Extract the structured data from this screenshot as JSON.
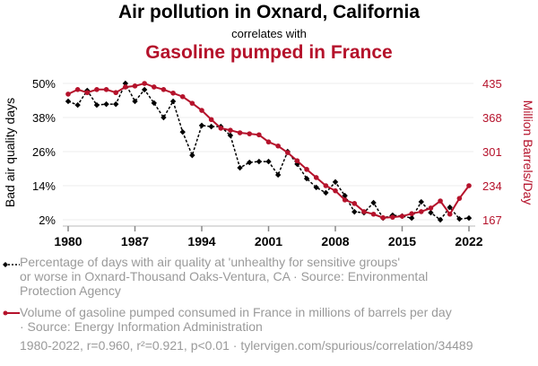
{
  "header": {
    "title": "Air pollution in Oxnard, California",
    "subtitle": "correlates with",
    "title2": "Gasoline pumped in France"
  },
  "colors": {
    "series1": "#000000",
    "series2": "#b5122b",
    "grid": "#eeeeee",
    "legend_text": "#9a9a9a"
  },
  "legend": {
    "item1": "Percentage of days with air quality at 'unhealthy for sensitive groups' or worse in Oxnard-Thousand Oaks-Ventura, CA · Source: Environmental Protection Agency",
    "item1_lines": [
      "Percentage of days with air quality at 'unhealthy for sensitive groups'",
      "or worse in Oxnard-Thousand Oaks-Ventura, CA · Source: Environmental",
      "Protection Agency"
    ],
    "item2_lines": [
      "Volume of gasoline pumped consumed in France in millions of barrels per day",
      "· Source: Energy Information Administration"
    ]
  },
  "footer": "1980-2022, r=0.960, r²=0.921, p<0.01 · tylervigen.com/spurious/correlation/34489",
  "chart_data": {
    "type": "line",
    "title": "Air pollution in Oxnard, California correlates with Gasoline pumped in France",
    "x": [
      1980,
      1981,
      1982,
      1983,
      1984,
      1985,
      1986,
      1987,
      1988,
      1989,
      1990,
      1991,
      1992,
      1993,
      1994,
      1995,
      1996,
      1997,
      1998,
      1999,
      2000,
      2001,
      2002,
      2003,
      2004,
      2005,
      2006,
      2007,
      2008,
      2009,
      2010,
      2011,
      2012,
      2013,
      2014,
      2015,
      2016,
      2017,
      2018,
      2019,
      2020,
      2021,
      2022
    ],
    "xticks": [
      1980,
      1987,
      1994,
      2001,
      2008,
      2015,
      2022
    ],
    "xlim": [
      1980,
      2022
    ],
    "ylabel": "Bad air quality days",
    "ylabel_right": "Million Barrels/Day",
    "yticks_left": [
      "2%",
      "14%",
      "26%",
      "38%",
      "50%"
    ],
    "yticks_left_values": [
      2,
      14,
      26,
      38,
      50
    ],
    "ylim_left": [
      2,
      50
    ],
    "yticks_right": [
      "167",
      "234",
      "301",
      "368",
      "435"
    ],
    "yticks_right_values": [
      167,
      234,
      301,
      368,
      435
    ],
    "ylim_right": [
      167,
      435
    ],
    "grid": true,
    "series": [
      {
        "name": "Percentage of days with air quality at 'unhealthy for sensitive groups' or worse in Oxnard-Thousand Oaks-Ventura, CA",
        "axis": "left",
        "style": "dashed-diamond",
        "values": [
          43.7,
          42.4,
          47.5,
          42.4,
          42.7,
          42.7,
          50.0,
          43.7,
          47.8,
          43.1,
          38.0,
          43.7,
          32.9,
          24.7,
          35.2,
          34.8,
          34.8,
          31.7,
          20.3,
          22.2,
          22.5,
          22.5,
          17.8,
          26.0,
          21.6,
          16.5,
          13.4,
          11.5,
          15.3,
          10.5,
          4.8,
          4.5,
          8.0,
          2.6,
          3.6,
          3.3,
          2.6,
          8.3,
          4.5,
          2.0,
          6.4,
          2.3,
          2.6
        ]
      },
      {
        "name": "Volume of gasoline pumped consumed in France in millions of barrels per day",
        "axis": "right",
        "style": "solid-circle",
        "values": [
          414,
          423,
          417,
          423,
          423,
          417,
          428,
          430,
          435,
          428,
          423,
          416,
          409,
          396,
          382,
          364,
          347,
          343,
          338,
          336,
          334,
          320,
          312,
          299,
          283,
          266,
          250,
          234,
          224,
          206,
          199,
          183,
          178,
          171,
          172,
          174,
          179,
          183,
          190,
          204,
          178,
          209,
          234
        ]
      }
    ]
  }
}
